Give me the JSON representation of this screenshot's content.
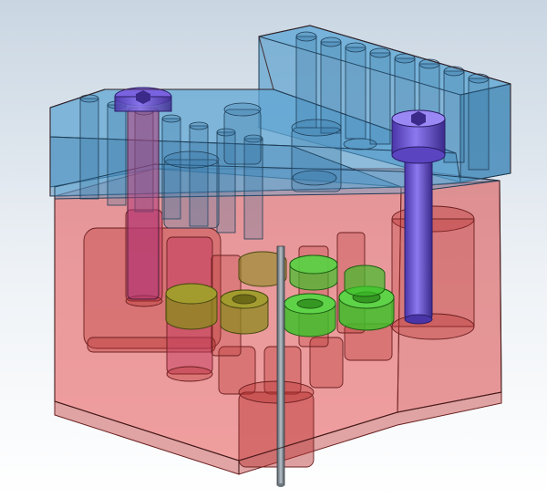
{
  "viewport": {
    "background_top": "#c9d6e2",
    "background_bottom": "#ffffff"
  },
  "model": {
    "colors": {
      "base_block": "#e03a3a",
      "top_plate": "#3f8fc4",
      "screw": "#6a4fd1",
      "ring_green": "#3fbf2a",
      "ring_olive": "#8c8a1f",
      "pin": "#7f8a93",
      "edge": "#5a2b2b"
    },
    "icons": [
      "cap-screw-icon",
      "cap-screw-icon"
    ]
  }
}
